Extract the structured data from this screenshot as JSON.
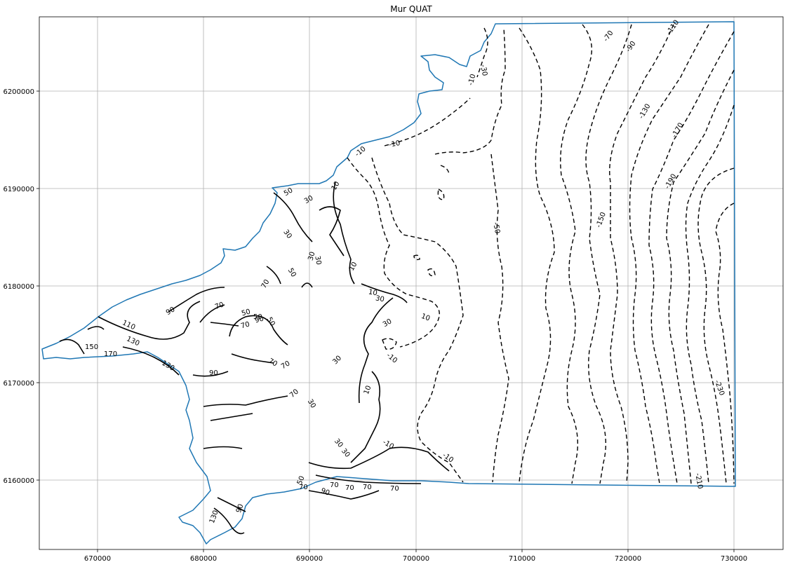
{
  "map": {
    "title": "Mur QUAT",
    "x_ticks": [
      "670000",
      "680000",
      "690000",
      "700000",
      "710000",
      "720000",
      "730000"
    ],
    "y_ticks": [
      "6200000",
      "6190000",
      "6180000",
      "6170000",
      "6160000"
    ],
    "boundary_color": "#1f77b4",
    "contour_color": "#000000",
    "grid": true,
    "contour_labels": [
      "150",
      "170",
      "110",
      "130",
      "130",
      "90",
      "90",
      "70",
      "50",
      "50",
      "70",
      "90",
      "50",
      "30",
      "70",
      "70",
      "70",
      "70",
      "50",
      "30",
      "30",
      "30",
      "30",
      "30",
      "50",
      "30",
      "10",
      "10",
      "10",
      "30",
      "10",
      "-10",
      "-10",
      "10",
      "-10",
      "-10",
      "-10",
      "-10",
      "-30",
      "-50",
      "-70",
      "-90",
      "-110",
      "-130",
      "-150",
      "-170",
      "-190",
      "-210",
      "-230",
      "130",
      "90",
      "90",
      "70",
      "70",
      "70",
      "70",
      "50",
      "70",
      "30",
      "30"
    ]
  }
}
